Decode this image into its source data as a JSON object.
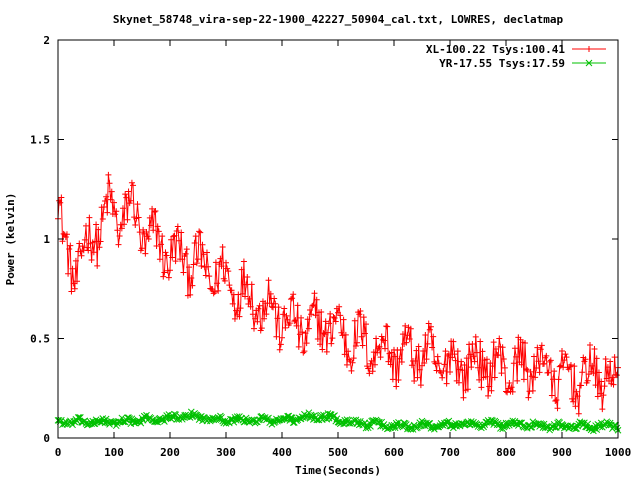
{
  "chart_data": {
    "type": "line",
    "title": "Skynet_58748_vira-sep-22-1900_42227_50904_cal.txt, LOWRES, declatmap",
    "xlabel": "Time(Seconds)",
    "ylabel": "Power (kelvin)",
    "xlim": [
      0,
      1000
    ],
    "ylim": [
      0,
      2
    ],
    "x_ticks": [
      0,
      100,
      200,
      300,
      400,
      500,
      600,
      700,
      800,
      900,
      1000
    ],
    "y_ticks": [
      0,
      0.5,
      1,
      1.5,
      2
    ],
    "y_tick_labels": [
      "0",
      "0.5",
      "1",
      "1.5",
      "2"
    ],
    "grid": false,
    "legend_position": "top-right",
    "sample_interval_seconds": 2,
    "series": [
      {
        "name": "XL-100.22 Tsys:100.41",
        "color": "#ff0000",
        "marker": "plus",
        "trend_x": [
          0,
          10,
          20,
          30,
          40,
          50,
          60,
          70,
          80,
          90,
          100,
          110,
          120,
          130,
          140,
          150,
          160,
          170,
          180,
          190,
          200,
          220,
          240,
          260,
          280,
          300,
          320,
          340,
          360,
          380,
          400,
          420,
          440,
          460,
          480,
          500,
          520,
          540,
          560,
          580,
          600,
          620,
          640,
          660,
          680,
          700,
          720,
          740,
          760,
          780,
          800,
          820,
          840,
          860,
          880,
          900,
          920,
          940,
          960,
          980,
          1000
        ],
        "trend_y": [
          1.2,
          0.95,
          0.9,
          0.85,
          0.9,
          0.95,
          1.0,
          1.05,
          1.1,
          1.15,
          1.12,
          1.1,
          1.15,
          1.15,
          1.1,
          1.05,
          1.0,
          1.0,
          0.98,
          0.95,
          0.93,
          0.9,
          0.9,
          0.85,
          0.82,
          0.8,
          0.75,
          0.72,
          0.68,
          0.65,
          0.6,
          0.57,
          0.55,
          0.55,
          0.58,
          0.55,
          0.5,
          0.48,
          0.46,
          0.45,
          0.43,
          0.42,
          0.43,
          0.4,
          0.38,
          0.37,
          0.38,
          0.37,
          0.37,
          0.36,
          0.35,
          0.35,
          0.35,
          0.38,
          0.32,
          0.3,
          0.3,
          0.3,
          0.33,
          0.3,
          0.25
        ],
        "noise_amplitude": 0.14
      },
      {
        "name": "YR-17.55 Tsys:17.59",
        "color": "#00c000",
        "marker": "cross",
        "trend_x": [
          0,
          100,
          200,
          240,
          300,
          400,
          470,
          520,
          600,
          700,
          800,
          900,
          1000
        ],
        "trend_y": [
          0.08,
          0.08,
          0.1,
          0.11,
          0.09,
          0.09,
          0.11,
          0.08,
          0.06,
          0.07,
          0.07,
          0.06,
          0.06
        ],
        "noise_amplitude": 0.018
      }
    ]
  }
}
